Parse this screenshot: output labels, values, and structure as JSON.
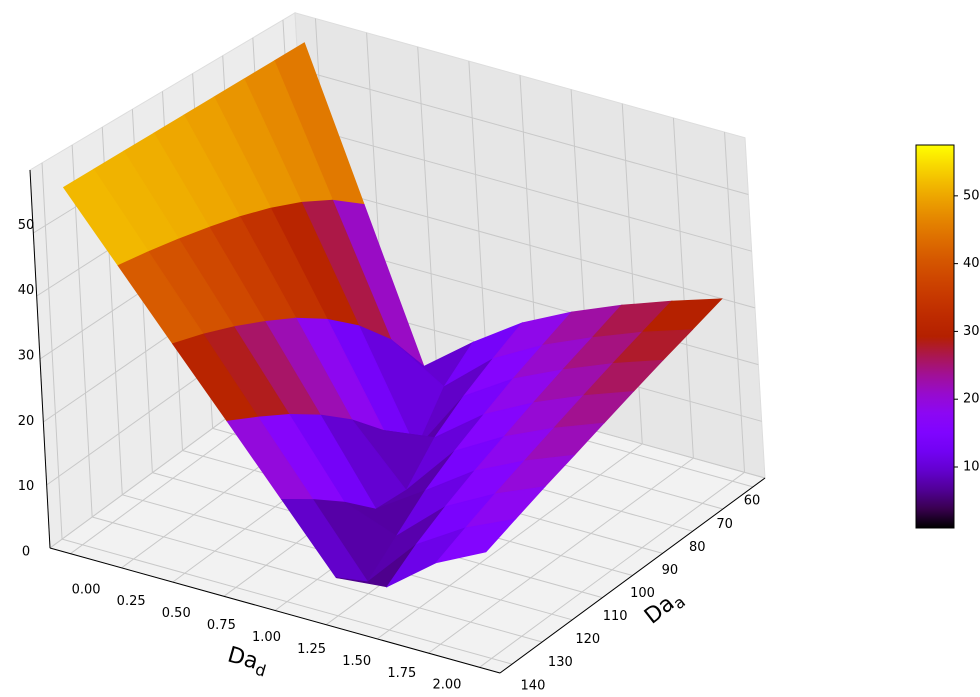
{
  "chart_data": {
    "type": "surface",
    "colormap": "gnuplot",
    "xlabel": [
      "Da",
      "d"
    ],
    "ylabel": [
      "Da",
      "a"
    ],
    "x": [
      0,
      0.25,
      0.5,
      0.75,
      1,
      1.25,
      1.5,
      1.75,
      2
    ],
    "y": [
      60,
      70,
      80,
      90,
      100,
      110,
      120,
      130,
      140
    ],
    "z": [
      [
        57,
        31.1,
        5.2,
        11.9,
        17.8,
        22.2,
        25.9,
        29.1,
        32
      ],
      [
        57,
        35.3,
        13.6,
        7.9,
        15.2,
        20.0,
        23.8,
        27.2,
        30.1
      ],
      [
        57,
        38.3,
        19.6,
        0.9,
        12.4,
        17.8,
        21.8,
        25.3,
        28.3
      ],
      [
        57,
        40.6,
        24.2,
        7.8,
        9.0,
        15.3,
        19.7,
        23.3,
        26.4
      ],
      [
        57,
        42.4,
        27.8,
        13.2,
        3.8,
        12.7,
        17.5,
        21.3,
        24.5
      ],
      [
        57,
        43.8,
        30.6,
        17.5,
        4.3,
        9.7,
        15.3,
        19.3,
        22.6
      ],
      [
        57,
        45.0,
        33.0,
        21.0,
        9.0,
        5.8,
        12.9,
        17.3,
        20.8
      ],
      [
        57,
        46.0,
        35.0,
        23.9,
        12.9,
        1.9,
        10.2,
        15.2,
        18.9
      ],
      [
        57,
        46.8,
        36.6,
        26.5,
        16.3,
        6.1,
        6.9,
        13.0,
        17
      ]
    ],
    "xlim": [
      -0.1,
      2.1
    ],
    "ylim": [
      56,
      144
    ],
    "zlim": [
      0,
      60
    ],
    "xticks": [
      {
        "value": 0,
        "label": "0.00"
      },
      {
        "value": 0.25,
        "label": "0.25"
      },
      {
        "value": 0.5,
        "label": "0.50"
      },
      {
        "value": 0.75,
        "label": "0.75"
      },
      {
        "value": 1,
        "label": "1.00"
      },
      {
        "value": 1.25,
        "label": "1.25"
      },
      {
        "value": 1.5,
        "label": "1.50"
      },
      {
        "value": 1.75,
        "label": "1.75"
      },
      {
        "value": 2,
        "label": "2.00"
      }
    ],
    "yticks": [
      60,
      70,
      80,
      90,
      100,
      110,
      120,
      130,
      140
    ],
    "zticks": [
      0,
      10,
      20,
      30,
      40,
      50
    ],
    "grid": true,
    "colorbar": {
      "clim": [
        1,
        57.5
      ],
      "ticks": [
        10,
        20,
        30,
        40,
        50
      ]
    }
  }
}
